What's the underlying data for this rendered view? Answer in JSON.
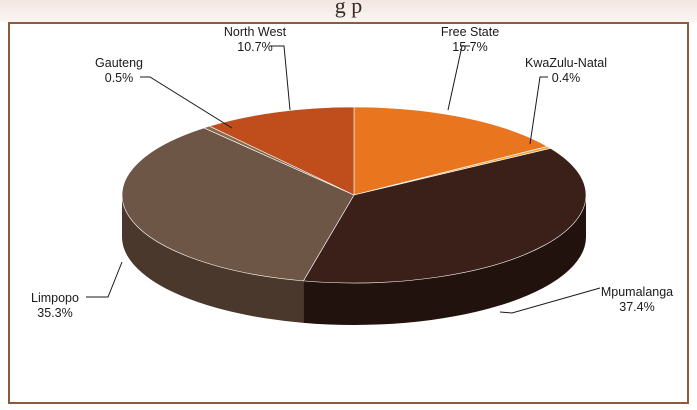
{
  "header": {
    "title_fragment": "g p"
  },
  "chart_data": {
    "type": "pie",
    "style": "3d",
    "slices": [
      {
        "label": "Free State",
        "value": 15.7,
        "value_label": "15.7%",
        "color": "#e9761f",
        "side_color": "#b85a12"
      },
      {
        "label": "KwaZulu-Natal",
        "value": 0.4,
        "value_label": "0.4%",
        "color": "#f2a63c",
        "side_color": "#c07a20"
      },
      {
        "label": "Mpumalanga",
        "value": 37.4,
        "value_label": "37.4%",
        "color": "#3a2019",
        "side_color": "#22120d"
      },
      {
        "label": "Limpopo",
        "value": 35.3,
        "value_label": "35.3%",
        "color": "#6e5646",
        "side_color": "#4a382c"
      },
      {
        "label": "Gauteng",
        "value": 0.5,
        "value_label": "0.5%",
        "color": "#8a6a4e",
        "side_color": "#5e4632"
      },
      {
        "label": "North West",
        "value": 10.7,
        "value_label": "10.7%",
        "color": "#bf4e1c",
        "side_color": "#8a3612"
      }
    ]
  }
}
